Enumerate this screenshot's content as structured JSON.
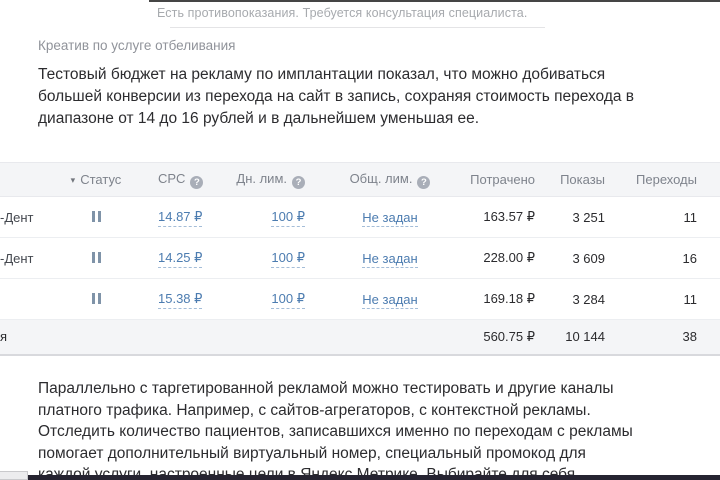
{
  "disclaimer": "Есть противопоказания. Требуется консультация специалиста.",
  "caption": "Креатив по услуге отбеливания",
  "intro": {
    "lines": [
      "Тестовый бюджет на рекламу по имплантации показал, что можно добиваться",
      "большей конверсии из перехода на сайт в запись, сохраняя стоимость перехода в",
      "диапазоне от 14 до 16 рублей  и в дальнейшем уменьшая ее."
    ]
  },
  "outro": {
    "lines": [
      "Параллельно с таргетированной рекламой можно тестировать и другие каналы",
      "платного трафика. Например, с сайтов-агрегаторов, с контекстной рекламы.",
      "Отследить количество пациентов, записавшихся именно по переходам с рекламы",
      "помогает дополнительный виртуальный номер, специальный промокод для",
      "каждой услуги, настроенные цели в Яндекс.Метрике. Выбирайте для себя"
    ]
  },
  "icons": {
    "sort_arrow": "▾",
    "help": "?"
  },
  "colors": {
    "link_blue": "#4c7cb0",
    "table_header_bg": "#f4f5f7",
    "text_dark": "#2c2c2f",
    "muted_gray": "#a7aaae"
  },
  "table": {
    "headers": {
      "status": "Статус",
      "cpc": "CPC",
      "daily_limit": "Дн. лим.",
      "total_limit": "Общ. лим.",
      "spent": "Потрачено",
      "impressions": "Показы",
      "clicks": "Переходы"
    },
    "rows": [
      {
        "name": "-Дент",
        "cpc": "14.87 ₽",
        "daily_limit": "100 ₽",
        "total_limit": "Не задан",
        "spent": "163.57 ₽",
        "impressions": "3 251",
        "clicks": "11"
      },
      {
        "name": "-Дент",
        "cpc": "14.25 ₽",
        "daily_limit": "100 ₽",
        "total_limit": "Не задан",
        "spent": "228.00 ₽",
        "impressions": "3 609",
        "clicks": "16"
      },
      {
        "name": "",
        "cpc": "15.38 ₽",
        "daily_limit": "100 ₽",
        "total_limit": "Не задан",
        "spent": "169.18 ₽",
        "impressions": "3 284",
        "clicks": "11"
      }
    ],
    "totals": {
      "name": "я",
      "spent": "560.75 ₽",
      "impressions": "10 144",
      "clicks": "38"
    }
  }
}
